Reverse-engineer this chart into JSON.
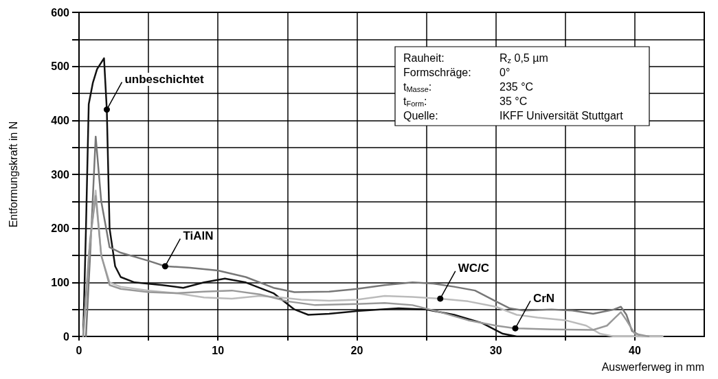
{
  "chart_data": {
    "type": "line",
    "xlabel": "Auswerferweg in mm",
    "ylabel": "Entformungskraft in N",
    "xlim": [
      0,
      45
    ],
    "xticks": [
      0,
      {
        "value": 5,
        "label": null
      },
      10,
      {
        "value": 15,
        "label": null
      },
      20,
      {
        "value": 25,
        "label": null
      },
      30,
      {
        "value": 35,
        "label": null
      },
      40
    ],
    "ylim": [
      0,
      600
    ],
    "yticks": [
      0,
      {
        "value": 50,
        "label": null
      },
      100,
      {
        "value": 150,
        "label": null
      },
      200,
      {
        "value": 250,
        "label": null
      },
      300,
      {
        "value": 350,
        "label": null
      },
      400,
      {
        "value": 450,
        "label": null
      },
      500,
      {
        "value": 550,
        "label": null
      },
      600
    ],
    "grid": true,
    "legend": false,
    "marker": "none",
    "line_style": "solid",
    "series": [
      {
        "name": "unbeschichtet",
        "color": "#111111",
        "x": [
          0.3,
          0.5,
          0.7,
          1.0,
          1.3,
          1.8,
          2.0,
          2.2,
          2.6,
          3.0,
          4,
          6,
          7.5,
          9,
          10.5,
          12,
          14,
          15.5,
          16.5,
          18,
          20,
          23,
          25,
          27,
          29,
          30.5,
          31.5,
          42
        ],
        "values": [
          0,
          200,
          430,
          470,
          495,
          515,
          420,
          200,
          130,
          110,
          100,
          95,
          90,
          100,
          107,
          100,
          80,
          50,
          40,
          42,
          47,
          52,
          50,
          40,
          25,
          5,
          0,
          0
        ]
      },
      {
        "name": "TiAlN",
        "color": "#777777",
        "x": [
          0.5,
          0.8,
          1.2,
          1.6,
          2.2,
          3,
          5,
          6.2,
          8,
          10,
          12,
          14,
          15.5,
          18,
          20,
          22,
          24,
          25.5,
          27,
          28.5,
          30,
          31,
          32,
          34,
          35.5,
          37,
          38.5,
          39,
          39.4,
          39.8,
          40.5,
          42
        ],
        "values": [
          0,
          150,
          370,
          250,
          165,
          155,
          140,
          130,
          127,
          122,
          110,
          90,
          82,
          83,
          88,
          95,
          100,
          98,
          92,
          85,
          65,
          52,
          48,
          50,
          48,
          42,
          50,
          55,
          40,
          10,
          0,
          0
        ]
      },
      {
        "name": "WC/C",
        "color": "#bbbbbb",
        "x": [
          0.3,
          0.7,
          1.2,
          1.6,
          2.2,
          3,
          5,
          7,
          9,
          11,
          13,
          14.5,
          16,
          18,
          20,
          22,
          24,
          26,
          28,
          30,
          31.5,
          33,
          35,
          36.5,
          37.5,
          38.5,
          42
        ],
        "values": [
          0,
          150,
          270,
          150,
          100,
          92,
          85,
          80,
          72,
          70,
          75,
          72,
          68,
          66,
          68,
          75,
          73,
          70,
          65,
          55,
          40,
          35,
          30,
          20,
          5,
          0,
          0
        ]
      },
      {
        "name": "CrN",
        "color": "#999999",
        "x": [
          0.3,
          0.8,
          1.2,
          1.6,
          2.2,
          3,
          5,
          7,
          9,
          11,
          13,
          15,
          17,
          20,
          22,
          24,
          26,
          28,
          30,
          31.4,
          34,
          37,
          38,
          38.6,
          39,
          39.4,
          40,
          41
        ],
        "values": [
          0,
          180,
          260,
          150,
          95,
          88,
          82,
          80,
          83,
          85,
          78,
          65,
          58,
          60,
          62,
          58,
          45,
          30,
          20,
          15,
          13,
          12,
          20,
          35,
          45,
          30,
          5,
          0
        ]
      }
    ],
    "annotations": [
      "Rauheit:",
      "R$_{z}$ 0,5 µm",
      "Formschräge:",
      "0°",
      "t$_{Masse}$:",
      "235 °C",
      "t$_{Form}$:",
      "35 °C",
      "Quelle:",
      "IKFF Universität Stuttgart"
    ]
  }
}
